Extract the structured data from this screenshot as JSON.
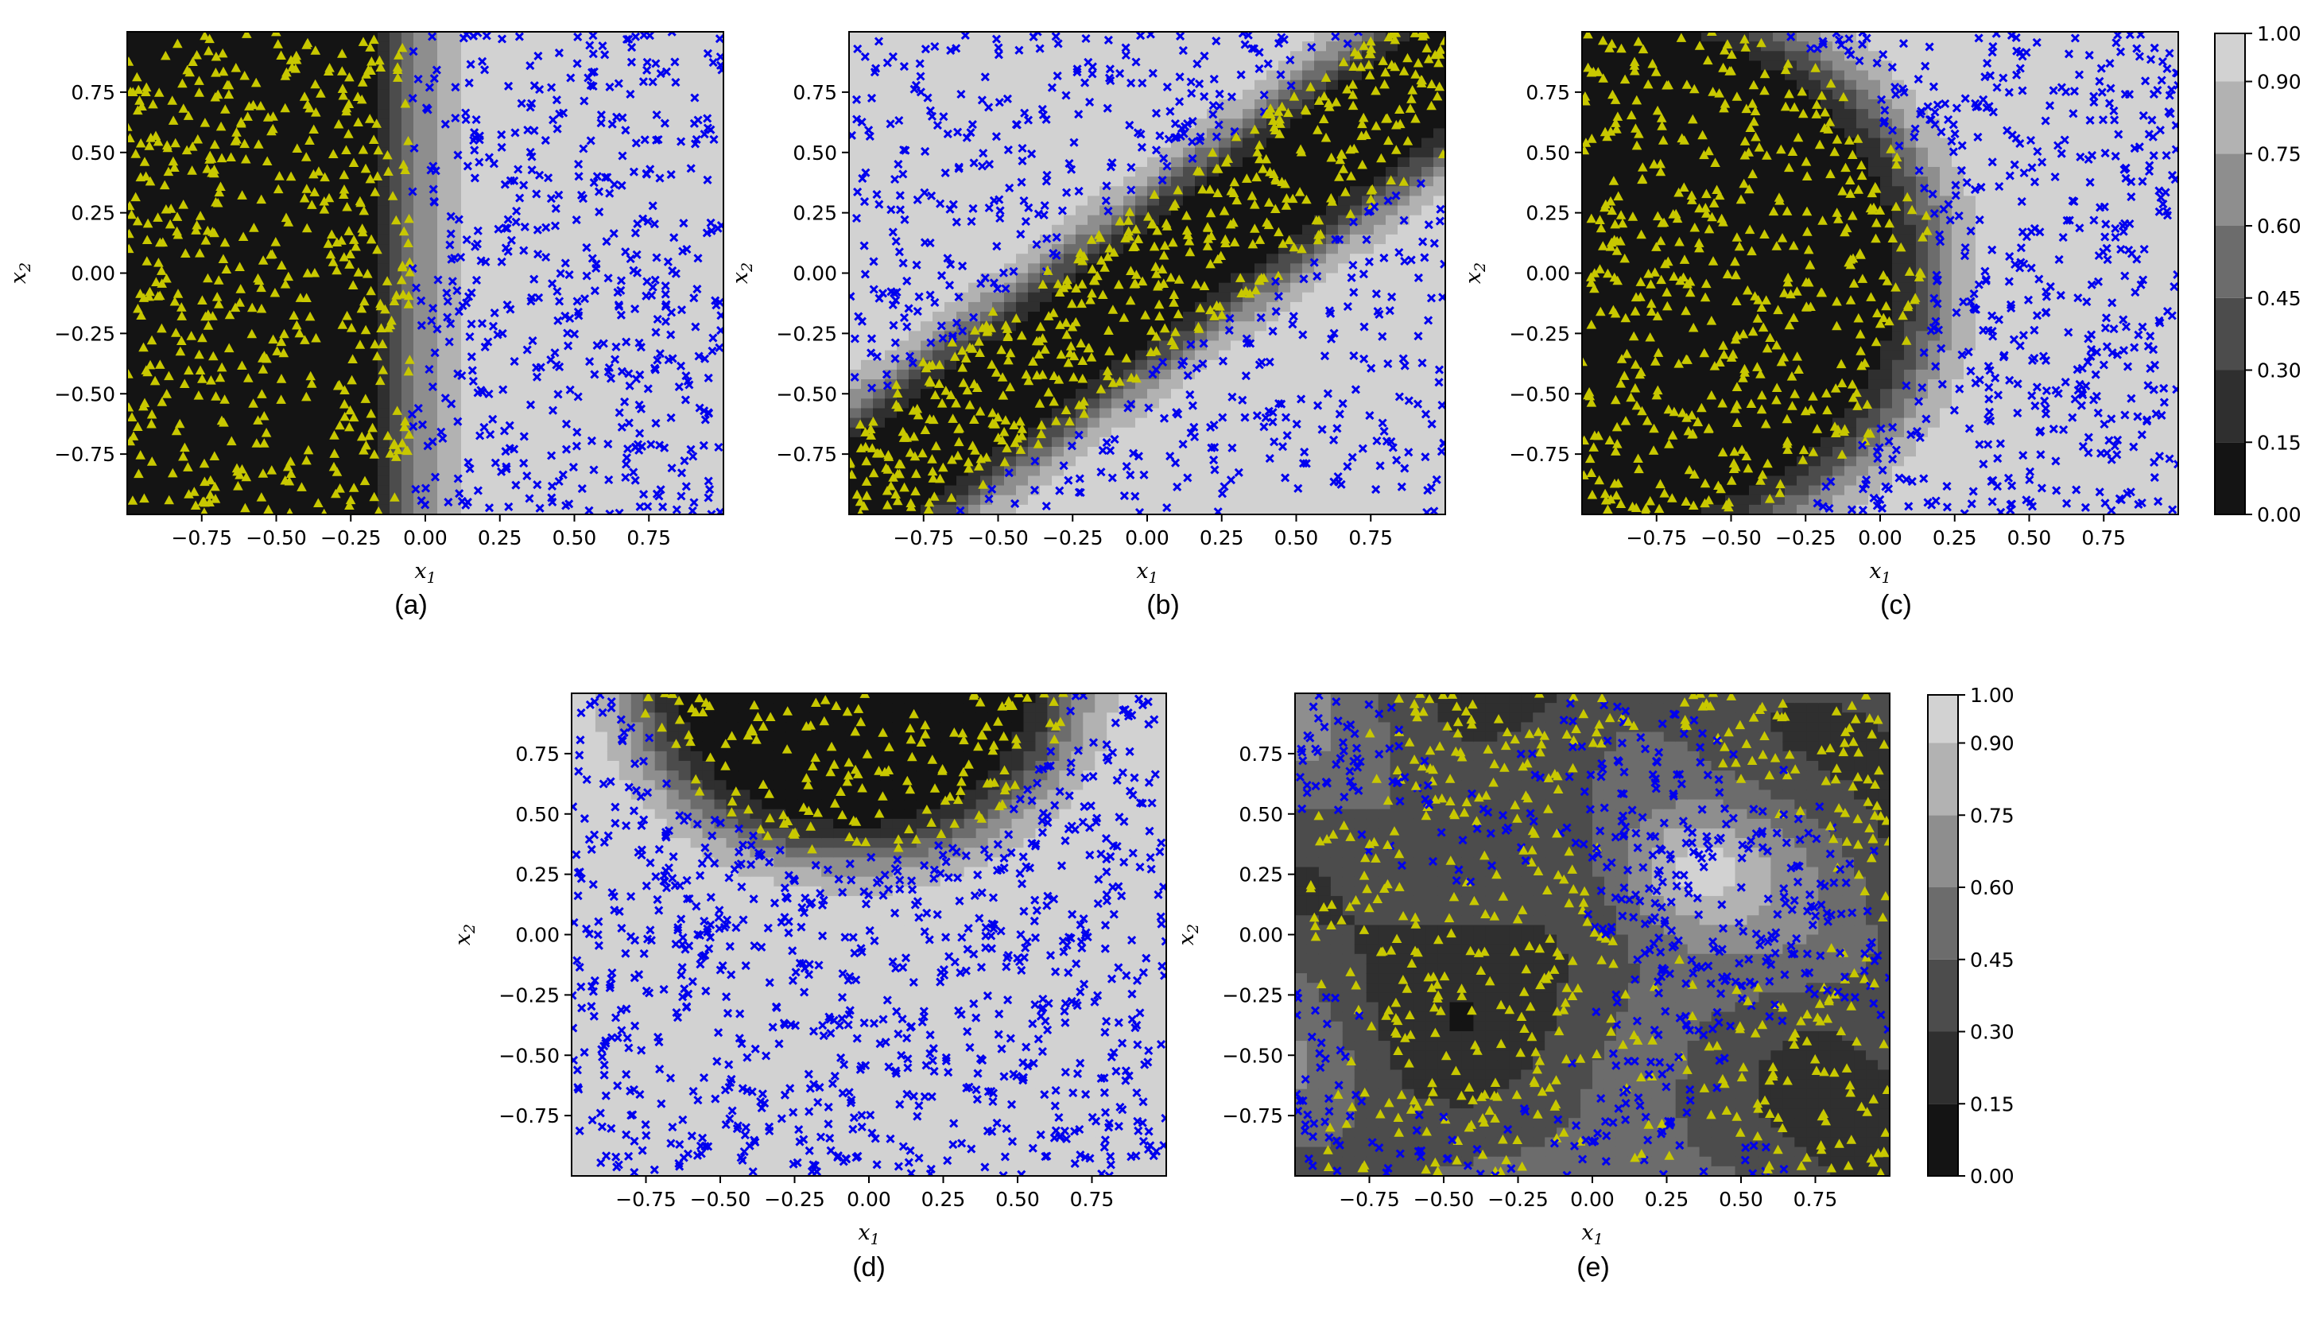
{
  "chart_data": [
    {
      "type": "scatter",
      "panel": "a",
      "caption": "(a)",
      "xlabel": "x",
      "xlabel_sub": "1",
      "ylabel": "x",
      "ylabel_sub": "2",
      "xlim": [
        -1,
        1
      ],
      "ylim": [
        -1,
        1
      ],
      "xticks": [
        -0.75,
        -0.5,
        -0.25,
        0.0,
        0.25,
        0.5,
        0.75
      ],
      "yticks": [
        -0.75,
        -0.5,
        -0.25,
        0.0,
        0.25,
        0.5,
        0.75
      ],
      "tick_labels": [
        "−0.75",
        "−0.50",
        "−0.25",
        "0.00",
        "0.25",
        "0.50",
        "0.75"
      ],
      "boundary": "vertical",
      "boundary_params": {
        "x": -0.05
      },
      "series": [
        {
          "marker": "triangle",
          "color": "#c8c800",
          "count": 500,
          "region": "dark"
        },
        {
          "marker": "x",
          "color": "#0000ee",
          "count": 500,
          "region": "light"
        }
      ],
      "colorbar": false
    },
    {
      "type": "scatter",
      "panel": "b",
      "caption": "(b)",
      "xlabel": "x",
      "xlabel_sub": "1",
      "ylabel": "x",
      "ylabel_sub": "2",
      "xlim": [
        -1,
        1
      ],
      "ylim": [
        -1,
        1
      ],
      "xticks": [
        -0.75,
        -0.5,
        -0.25,
        0.0,
        0.25,
        0.5,
        0.75
      ],
      "yticks": [
        -0.75,
        -0.5,
        -0.25,
        0.0,
        0.25,
        0.5,
        0.75
      ],
      "tick_labels": [
        "−0.75",
        "−0.50",
        "−0.25",
        "0.00",
        "0.25",
        "0.50",
        "0.75"
      ],
      "boundary": "band",
      "boundary_params": {
        "slope": 0.9,
        "offset": -0.05,
        "half_width": 0.36
      },
      "series": [
        {
          "marker": "triangle",
          "color": "#c8c800",
          "count": 500,
          "region": "dark"
        },
        {
          "marker": "x",
          "color": "#0000ee",
          "count": 500,
          "region": "light"
        }
      ],
      "colorbar": false
    },
    {
      "type": "scatter",
      "panel": "c",
      "caption": "(c)",
      "xlabel": "x",
      "xlabel_sub": "1",
      "ylabel": "x",
      "ylabel_sub": "2",
      "xlim": [
        -1,
        1
      ],
      "ylim": [
        -1,
        1
      ],
      "xticks": [
        -0.75,
        -0.5,
        -0.25,
        0.0,
        0.25,
        0.5,
        0.75
      ],
      "yticks": [
        -0.75,
        -0.5,
        -0.25,
        0.0,
        0.25,
        0.5,
        0.75
      ],
      "tick_labels": [
        "−0.75",
        "−0.50",
        "−0.25",
        "0.00",
        "0.25",
        "0.50",
        "0.75"
      ],
      "boundary": "circle",
      "boundary_params": {
        "cx": -1.0,
        "cy": 0.0,
        "r": 1.18
      },
      "series": [
        {
          "marker": "triangle",
          "color": "#c8c800",
          "count": 500,
          "region": "dark"
        },
        {
          "marker": "x",
          "color": "#0000ee",
          "count": 500,
          "region": "light"
        }
      ],
      "colorbar": true,
      "colorbar_ticks": [
        "0.00",
        "0.15",
        "0.30",
        "0.45",
        "0.60",
        "0.75",
        "0.90",
        "1.00"
      ],
      "colorbar_levels": [
        0.0,
        0.15,
        0.3,
        0.45,
        0.6,
        0.75,
        0.9,
        1.0
      ]
    },
    {
      "type": "scatter",
      "panel": "d",
      "caption": "(d)",
      "xlabel": "x",
      "xlabel_sub": "1",
      "ylabel": "x",
      "ylabel_sub": "2",
      "xlim": [
        -1,
        1
      ],
      "ylim": [
        -1,
        1
      ],
      "xticks": [
        -0.75,
        -0.5,
        -0.25,
        0.0,
        0.25,
        0.5,
        0.75
      ],
      "yticks": [
        -0.75,
        -0.5,
        -0.25,
        0.0,
        0.25,
        0.5,
        0.75
      ],
      "tick_labels": [
        "−0.75",
        "−0.50",
        "−0.25",
        "0.00",
        "0.25",
        "0.50",
        "0.75"
      ],
      "boundary": "circle",
      "boundary_params": {
        "cx": -0.05,
        "cy": 1.05,
        "r": 0.72
      },
      "series": [
        {
          "marker": "triangle",
          "color": "#c8c800",
          "count": 160,
          "region": "dark"
        },
        {
          "marker": "x",
          "color": "#0000ee",
          "count": 840,
          "region": "light"
        }
      ],
      "colorbar": false
    },
    {
      "type": "scatter",
      "panel": "e",
      "caption": "(e)",
      "xlabel": "x",
      "xlabel_sub": "1",
      "ylabel": "x",
      "ylabel_sub": "2",
      "xlim": [
        -1,
        1
      ],
      "ylim": [
        -1,
        1
      ],
      "xticks": [
        -0.75,
        -0.5,
        -0.25,
        0.0,
        0.25,
        0.5,
        0.75
      ],
      "yticks": [
        -0.75,
        -0.5,
        -0.25,
        0.0,
        0.25,
        0.5,
        0.75
      ],
      "tick_labels": [
        "−0.75",
        "−0.50",
        "−0.25",
        "0.00",
        "0.25",
        "0.50",
        "0.75"
      ],
      "boundary": "noisy",
      "boundary_params": {
        "peak_x": 0.33,
        "peak_y": 0.27
      },
      "series": [
        {
          "marker": "triangle",
          "color": "#c8c800",
          "count": 500,
          "region": "mixed"
        },
        {
          "marker": "x",
          "color": "#0000ee",
          "count": 500,
          "region": "mixed"
        }
      ],
      "colorbar": true,
      "colorbar_ticks": [
        "0.00",
        "0.15",
        "0.30",
        "0.45",
        "0.60",
        "0.75",
        "0.90",
        "1.00"
      ],
      "colorbar_levels": [
        0.0,
        0.15,
        0.3,
        0.45,
        0.6,
        0.75,
        0.9,
        1.0
      ]
    }
  ],
  "colors": {
    "levels": [
      "#141414",
      "#2f2f2f",
      "#4c4c4c",
      "#6c6c6c",
      "#8e8e8e",
      "#b2b2b2",
      "#d2d2d2",
      "#eeeeee"
    ]
  }
}
